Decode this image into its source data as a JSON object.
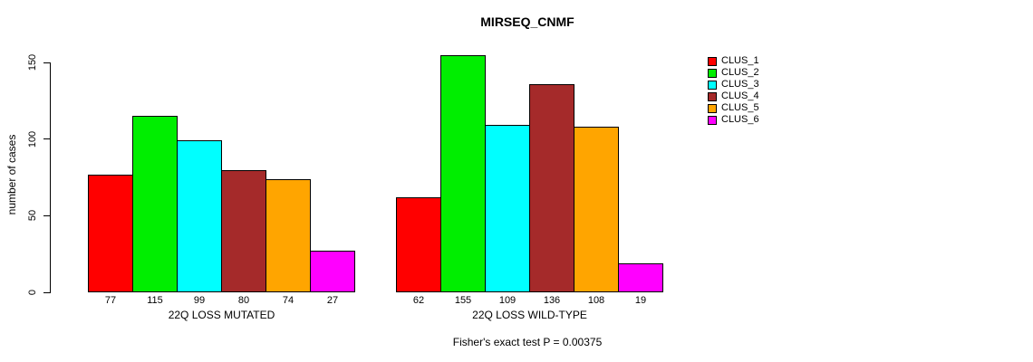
{
  "chart_data": {
    "type": "bar",
    "title": "MIRSEQ_CNMF",
    "ylabel": "number of cases",
    "xlabel": "",
    "ylim": [
      0,
      150
    ],
    "y_ticks": [
      0,
      50,
      100,
      150
    ],
    "grid": false,
    "legend_position": "top-right-outside",
    "groups": [
      {
        "label": "22Q LOSS MUTATED",
        "values": [
          77,
          115,
          99,
          80,
          74,
          27
        ]
      },
      {
        "label": "22Q LOSS WILD-TYPE",
        "values": [
          62,
          155,
          109,
          136,
          108,
          19
        ]
      }
    ],
    "series": [
      {
        "name": "CLUS_1",
        "color": "#FF0000",
        "values": [
          77,
          62
        ]
      },
      {
        "name": "CLUS_2",
        "color": "#00EE00",
        "values": [
          115,
          155
        ]
      },
      {
        "name": "CLUS_3",
        "color": "#00FFFF",
        "values": [
          99,
          109
        ]
      },
      {
        "name": "CLUS_4",
        "color": "#A52A2A",
        "values": [
          80,
          136
        ]
      },
      {
        "name": "CLUS_5",
        "color": "#FFA500",
        "values": [
          74,
          108
        ]
      },
      {
        "name": "CLUS_6",
        "color": "#FF00FF",
        "values": [
          27,
          19
        ]
      }
    ],
    "annotation": "Fisher's exact test P = 0.00375"
  }
}
